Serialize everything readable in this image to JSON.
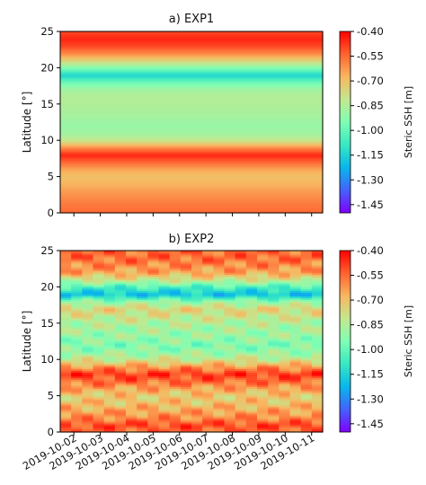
{
  "chart_data": [
    {
      "type": "heatmap",
      "title": "a) EXP1",
      "ylabel": "Latitude [°]",
      "ylim": [
        0,
        25
      ],
      "yticks": [
        "0",
        "5",
        "10",
        "15",
        "20",
        "25"
      ],
      "x_ticks": [
        "2019-10-02",
        "2019-10-03",
        "2019-10-04",
        "2019-10-05",
        "2019-10-06",
        "2019-10-07",
        "2019-10-08",
        "2019-10-09",
        "2019-10-10",
        "2019-10-11"
      ],
      "x_tick_labels_shown": false,
      "colorbar": {
        "label": "Steric SSH [m]",
        "colormap": "rainbow",
        "range": [
          -1.5,
          -0.4
        ],
        "ticks": [
          "-0.40",
          "-0.55",
          "-0.70",
          "-0.85",
          "-1.00",
          "-1.15",
          "-1.30",
          "-1.45"
        ]
      },
      "latitude_profile": [
        {
          "lat": 0,
          "ssh": -0.55
        },
        {
          "lat": 1,
          "ssh": -0.57
        },
        {
          "lat": 2,
          "ssh": -0.6
        },
        {
          "lat": 3,
          "ssh": -0.63
        },
        {
          "lat": 4,
          "ssh": -0.67
        },
        {
          "lat": 5,
          "ssh": -0.7
        },
        {
          "lat": 6,
          "ssh": -0.65
        },
        {
          "lat": 7,
          "ssh": -0.55
        },
        {
          "lat": 8,
          "ssh": -0.45
        },
        {
          "lat": 9,
          "ssh": -0.6
        },
        {
          "lat": 10,
          "ssh": -0.8
        },
        {
          "lat": 11,
          "ssh": -0.88
        },
        {
          "lat": 12,
          "ssh": -0.9
        },
        {
          "lat": 13,
          "ssh": -0.88
        },
        {
          "lat": 14,
          "ssh": -0.86
        },
        {
          "lat": 15,
          "ssh": -0.85
        },
        {
          "lat": 16,
          "ssh": -0.84
        },
        {
          "lat": 17,
          "ssh": -0.88
        },
        {
          "lat": 18,
          "ssh": -0.98
        },
        {
          "lat": 19,
          "ssh": -1.15
        },
        {
          "lat": 20,
          "ssh": -0.95
        },
        {
          "lat": 21,
          "ssh": -0.75
        },
        {
          "lat": 22,
          "ssh": -0.6
        },
        {
          "lat": 23,
          "ssh": -0.5
        },
        {
          "lat": 24,
          "ssh": -0.45
        },
        {
          "lat": 25,
          "ssh": -0.5
        }
      ]
    },
    {
      "type": "heatmap",
      "title": "b) EXP2",
      "ylabel": "Latitude [°]",
      "ylim": [
        0,
        25
      ],
      "yticks": [
        "0",
        "5",
        "10",
        "15",
        "20",
        "25"
      ],
      "x_ticks": [
        "2019-10-02",
        "2019-10-03",
        "2019-10-04",
        "2019-10-05",
        "2019-10-06",
        "2019-10-07",
        "2019-10-08",
        "2019-10-09",
        "2019-10-10",
        "2019-10-11"
      ],
      "x_tick_labels_shown": true,
      "colorbar": {
        "label": "Steric SSH [m]",
        "colormap": "rainbow",
        "range": [
          -1.5,
          -0.4
        ],
        "ticks": [
          "-0.40",
          "-0.55",
          "-0.70",
          "-0.85",
          "-1.00",
          "-1.15",
          "-1.30",
          "-1.45"
        ]
      },
      "latitude_profile": [
        {
          "lat": 0,
          "ssh": -0.55
        },
        {
          "lat": 1,
          "ssh": -0.5
        },
        {
          "lat": 2,
          "ssh": -0.6
        },
        {
          "lat": 3,
          "ssh": -0.65
        },
        {
          "lat": 4,
          "ssh": -0.7
        },
        {
          "lat": 5,
          "ssh": -0.72
        },
        {
          "lat": 6,
          "ssh": -0.65
        },
        {
          "lat": 7,
          "ssh": -0.55
        },
        {
          "lat": 8,
          "ssh": -0.48
        },
        {
          "lat": 9,
          "ssh": -0.62
        },
        {
          "lat": 10,
          "ssh": -0.8
        },
        {
          "lat": 11,
          "ssh": -0.9
        },
        {
          "lat": 12,
          "ssh": -0.95
        },
        {
          "lat": 13,
          "ssh": -0.9
        },
        {
          "lat": 14,
          "ssh": -0.88
        },
        {
          "lat": 15,
          "ssh": -0.85
        },
        {
          "lat": 16,
          "ssh": -0.8
        },
        {
          "lat": 17,
          "ssh": -0.75
        },
        {
          "lat": 18,
          "ssh": -0.9
        },
        {
          "lat": 19,
          "ssh": -1.2
        },
        {
          "lat": 20,
          "ssh": -1.05
        },
        {
          "lat": 21,
          "ssh": -0.8
        },
        {
          "lat": 22,
          "ssh": -0.65
        },
        {
          "lat": 23,
          "ssh": -0.6
        },
        {
          "lat": 24,
          "ssh": -0.55
        },
        {
          "lat": 25,
          "ssh": -0.55
        }
      ]
    }
  ]
}
